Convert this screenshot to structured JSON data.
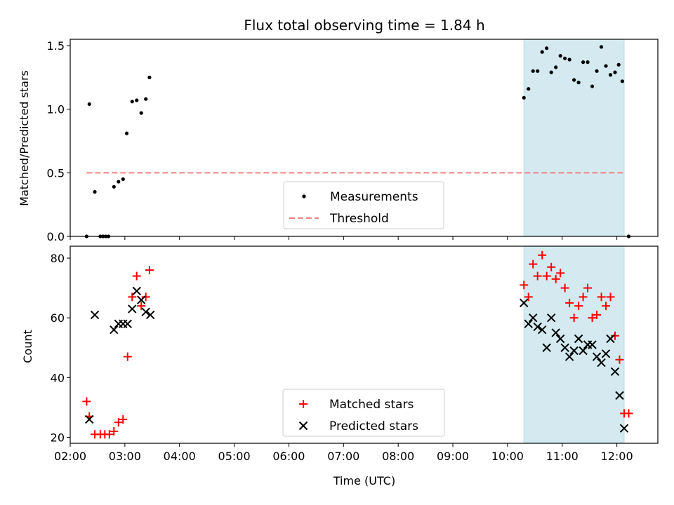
{
  "chart_data": [
    {
      "type": "scatter",
      "title": "Flux total observing time = 1.84 h",
      "ylabel": "Matched/Predicted stars",
      "xlabel": "",
      "xlim": [
        "02:00",
        "12:45"
      ],
      "ylim": [
        0,
        1.55
      ],
      "yticks": [
        "0.0",
        "0.5",
        "1.0",
        "1.5"
      ],
      "shaded_region": {
        "start": "10:18",
        "end": "12:08",
        "color": "#d4eaf0"
      },
      "legend": {
        "placement": "bottom-center",
        "entries": [
          "Measurements",
          "Threshold"
        ]
      },
      "threshold": {
        "name": "Threshold",
        "value": 0.5,
        "x_range": [
          "02:18",
          "12:08"
        ],
        "color": "#f08080"
      },
      "series": [
        {
          "name": "Measurements",
          "color": "#000000",
          "points": [
            [
              "02:18",
              0.0
            ],
            [
              "02:21",
              1.04
            ],
            [
              "02:27",
              0.35
            ],
            [
              "02:33",
              0.0
            ],
            [
              "02:36",
              0.0
            ],
            [
              "02:39",
              0.0
            ],
            [
              "02:42",
              0.0
            ],
            [
              "02:48",
              0.39
            ],
            [
              "02:53",
              0.43
            ],
            [
              "02:58",
              0.45
            ],
            [
              "03:02",
              0.81
            ],
            [
              "03:08",
              1.06
            ],
            [
              "03:13",
              1.07
            ],
            [
              "03:18",
              0.97
            ],
            [
              "03:23",
              1.08
            ],
            [
              "03:27",
              1.25
            ],
            [
              "10:18",
              1.09
            ],
            [
              "10:23",
              1.16
            ],
            [
              "10:28",
              1.3
            ],
            [
              "10:33",
              1.3
            ],
            [
              "10:38",
              1.45
            ],
            [
              "10:43",
              1.48
            ],
            [
              "10:48",
              1.29
            ],
            [
              "10:53",
              1.33
            ],
            [
              "10:58",
              1.42
            ],
            [
              "11:03",
              1.4
            ],
            [
              "11:08",
              1.39
            ],
            [
              "11:13",
              1.23
            ],
            [
              "11:18",
              1.21
            ],
            [
              "11:23",
              1.37
            ],
            [
              "11:28",
              1.37
            ],
            [
              "11:33",
              1.18
            ],
            [
              "11:38",
              1.3
            ],
            [
              "11:43",
              1.49
            ],
            [
              "11:48",
              1.34
            ],
            [
              "11:53",
              1.27
            ],
            [
              "11:58",
              1.29
            ],
            [
              "12:02",
              1.35
            ],
            [
              "12:06",
              1.22
            ],
            [
              "12:13",
              0.0
            ]
          ]
        }
      ]
    },
    {
      "type": "scatter",
      "title": "",
      "xlabel": "Time (UTC)",
      "ylabel": "Count",
      "xlim": [
        "02:00",
        "12:45"
      ],
      "ylim": [
        18,
        84
      ],
      "xticks": [
        "02:00",
        "03:00",
        "04:00",
        "05:00",
        "06:00",
        "07:00",
        "08:00",
        "09:00",
        "10:00",
        "11:00",
        "12:00"
      ],
      "yticks": [
        "20",
        "40",
        "60",
        "80"
      ],
      "shaded_region": {
        "start": "10:18",
        "end": "12:08",
        "color": "#d4eaf0"
      },
      "legend": {
        "placement": "bottom-center",
        "entries": [
          "Matched stars",
          "Predicted stars"
        ]
      },
      "series": [
        {
          "name": "Matched stars",
          "marker": "+",
          "color": "#ff0000",
          "points": [
            [
              "02:18",
              32
            ],
            [
              "02:21",
              27
            ],
            [
              "02:27",
              21
            ],
            [
              "02:33",
              21
            ],
            [
              "02:38",
              21
            ],
            [
              "02:43",
              21
            ],
            [
              "02:48",
              22
            ],
            [
              "02:53",
              25
            ],
            [
              "02:58",
              26
            ],
            [
              "03:03",
              47
            ],
            [
              "03:08",
              67
            ],
            [
              "03:13",
              74
            ],
            [
              "03:18",
              64
            ],
            [
              "03:23",
              67
            ],
            [
              "03:27",
              76
            ],
            [
              "10:18",
              71
            ],
            [
              "10:23",
              67
            ],
            [
              "10:28",
              78
            ],
            [
              "10:33",
              74
            ],
            [
              "10:38",
              81
            ],
            [
              "10:43",
              74
            ],
            [
              "10:48",
              77
            ],
            [
              "10:53",
              73
            ],
            [
              "10:58",
              75
            ],
            [
              "11:03",
              70
            ],
            [
              "11:08",
              65
            ],
            [
              "11:13",
              60
            ],
            [
              "11:18",
              64
            ],
            [
              "11:23",
              67
            ],
            [
              "11:28",
              70
            ],
            [
              "11:33",
              60
            ],
            [
              "11:38",
              61
            ],
            [
              "11:43",
              67
            ],
            [
              "11:48",
              64
            ],
            [
              "11:53",
              67
            ],
            [
              "11:58",
              54
            ],
            [
              "12:03",
              46
            ],
            [
              "12:08",
              28
            ],
            [
              "12:13",
              28
            ]
          ]
        },
        {
          "name": "Predicted stars",
          "marker": "x",
          "color": "#000000",
          "points": [
            [
              "02:21",
              26
            ],
            [
              "02:27",
              61
            ],
            [
              "02:48",
              56
            ],
            [
              "02:53",
              58
            ],
            [
              "02:58",
              58
            ],
            [
              "03:03",
              58
            ],
            [
              "03:08",
              63
            ],
            [
              "03:13",
              69
            ],
            [
              "03:18",
              66
            ],
            [
              "03:23",
              62
            ],
            [
              "03:28",
              61
            ],
            [
              "10:18",
              65
            ],
            [
              "10:23",
              58
            ],
            [
              "10:28",
              60
            ],
            [
              "10:33",
              57
            ],
            [
              "10:38",
              56
            ],
            [
              "10:43",
              50
            ],
            [
              "10:48",
              60
            ],
            [
              "10:53",
              55
            ],
            [
              "10:58",
              53
            ],
            [
              "11:03",
              50
            ],
            [
              "11:08",
              47
            ],
            [
              "11:13",
              49
            ],
            [
              "11:18",
              53
            ],
            [
              "11:23",
              49
            ],
            [
              "11:28",
              51
            ],
            [
              "11:33",
              51
            ],
            [
              "11:38",
              47
            ],
            [
              "11:43",
              45
            ],
            [
              "11:48",
              48
            ],
            [
              "11:53",
              53
            ],
            [
              "11:58",
              42
            ],
            [
              "12:03",
              34
            ],
            [
              "12:08",
              23
            ]
          ]
        }
      ]
    }
  ]
}
